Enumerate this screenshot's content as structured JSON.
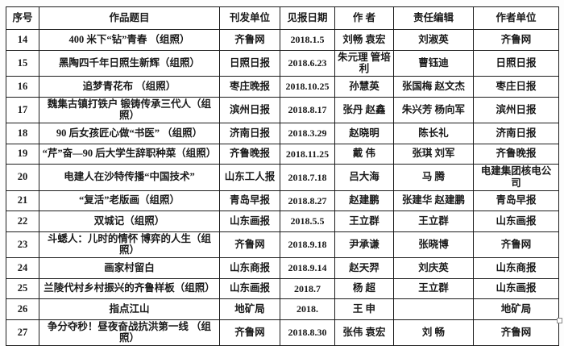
{
  "colors": {
    "border": "#1c1c1c",
    "text": "#1a1a1a",
    "background": "#fdfdfd"
  },
  "table": {
    "headers": [
      "序号",
      "作品题目",
      "刊发单位",
      "见报日期",
      "作 者",
      "责任编辑",
      "作者单位"
    ],
    "rows": [
      [
        "14",
        "400 米下“钻”青春 （组照）",
        "齐鲁网",
        "2018.1.5",
        "刘畅 袁宏",
        "刘淑英",
        "齐鲁网"
      ],
      [
        "15",
        "黑陶四千年日照生新辉（组照）",
        "日照日报",
        "2018.6.23",
        "朱元理 管培利",
        "曹钰迪",
        "日照日报"
      ],
      [
        "16",
        "追梦青花布 （组照）",
        "枣庄晚报",
        "2018.10.25",
        "孙慧英",
        "张国梅 赵文杰",
        "枣庄日报"
      ],
      [
        "17",
        "魏集古镇打铁户 锻铸传承三代人（组照）",
        "滨州日报",
        "2018.8.17",
        "张丹 赵鑫",
        "朱兴芳 杨向军",
        "滨州日报"
      ],
      [
        "18",
        "90 后女孩匠心做“书医” （组照）",
        "济南日报",
        "2018.3.29",
        "赵晓明",
        "陈长礼",
        "济南日报"
      ],
      [
        "19",
        "“芹”奋—90 后大学生辞职种菜（组照）",
        "齐鲁晚报",
        "2018.11.25",
        "戴 伟",
        "张琪 刘军",
        "齐鲁晚报"
      ],
      [
        "20",
        "电建人在沙特传播“中国技术”",
        "山东工人报",
        "2018.7.18",
        "吕大海",
        "马 腾",
        "电建集团核电公司"
      ],
      [
        "21",
        "“复活”老版画（组照）",
        "青岛早报",
        "2018.8.27",
        "赵建鹏",
        "张建华 赵建鹏",
        "青岛早报"
      ],
      [
        "22",
        "双城记（组照）",
        "山东画报",
        "2018.5.5",
        "王立群",
        "王立群",
        "山东画报"
      ],
      [
        "23",
        "斗蟋人：儿时的情怀 博弈的人生（组照）",
        "齐鲁网",
        "2018.9.18",
        "尹承谦",
        "张晓博",
        "齐鲁网"
      ],
      [
        "24",
        "画家村留白",
        "山东商报",
        "2018.9.14",
        "赵天羿",
        "刘庆英",
        "山东商报"
      ],
      [
        "25",
        "兰陵代村乡村振兴的齐鲁样板（组照）",
        "山东画报",
        "2018.7",
        "杨 超",
        "王立群",
        "山东画报"
      ],
      [
        "26",
        "指点江山",
        "地矿局",
        "2018.",
        "王 申",
        "",
        "地矿局"
      ],
      [
        "27",
        "争分夺秒！昼夜奋战抗洪第一线 （组照）",
        "齐鲁网",
        "2018.8.30",
        "张伟 袁宏",
        "刘 畅",
        "齐鲁网"
      ]
    ]
  }
}
